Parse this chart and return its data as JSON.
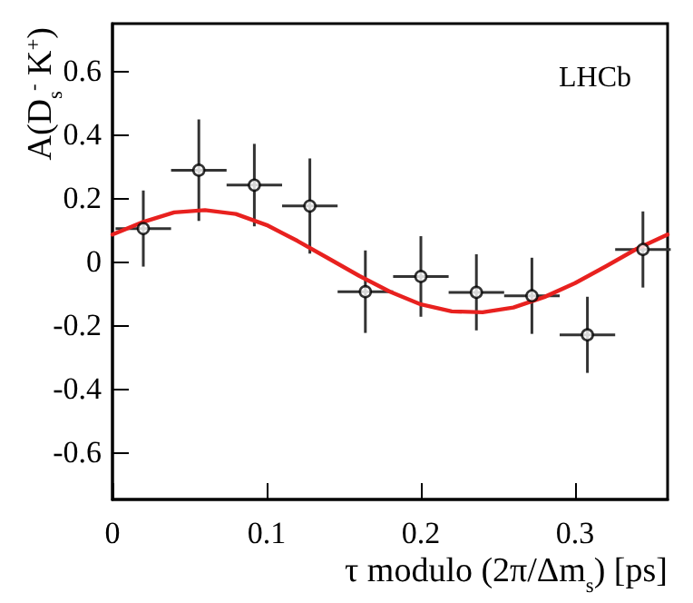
{
  "chart_data": {
    "type": "scatter",
    "xlabel": "τ  modulo (2π/Δm$_{s}$) [ps]",
    "ylabel": "A(D$_{s}$$^{-}$ K$^{+}$)",
    "annotations": [
      "LHCb"
    ],
    "xlim": [
      0,
      0.36
    ],
    "xticks": [
      0,
      0.1,
      0.2,
      0.3
    ],
    "ylim": [
      -0.75,
      0.75
    ],
    "yticks": [
      -0.6,
      -0.4,
      -0.2,
      0,
      0.2,
      0.4,
      0.6
    ],
    "grid": false,
    "marker": "circle",
    "series": [
      {
        "color": "#000000",
        "x": [
          0.02,
          0.056,
          0.092,
          0.128,
          0.164,
          0.2,
          0.236,
          0.272,
          0.308,
          0.344
        ],
        "values": [
          0.104,
          0.288,
          0.241,
          0.175,
          -0.095,
          -0.047,
          -0.097,
          -0.108,
          -0.231,
          0.038
        ],
        "errors": [
          0.12,
          0.16,
          0.13,
          0.15,
          0.13,
          0.127,
          0.12,
          0.12,
          0.12,
          0.12
        ],
        "xerrors": [
          0.018,
          0.018,
          0.018,
          0.018,
          0.018,
          0.018,
          0.018,
          0.018,
          0.018,
          0.018
        ]
      },
      {
        "type": "line",
        "color": "#e8211f",
        "marker": "none",
        "x": [
          0,
          0.02,
          0.04,
          0.06,
          0.08,
          0.1,
          0.12,
          0.14,
          0.16,
          0.18,
          0.2,
          0.22,
          0.24,
          0.26,
          0.28,
          0.3,
          0.32,
          0.34,
          0.36
        ],
        "values": [
          0.085,
          0.125,
          0.155,
          0.162,
          0.15,
          0.115,
          0.065,
          0.01,
          -0.045,
          -0.095,
          -0.135,
          -0.157,
          -0.16,
          -0.145,
          -0.112,
          -0.068,
          -0.015,
          0.04,
          0.085
        ]
      }
    ]
  }
}
